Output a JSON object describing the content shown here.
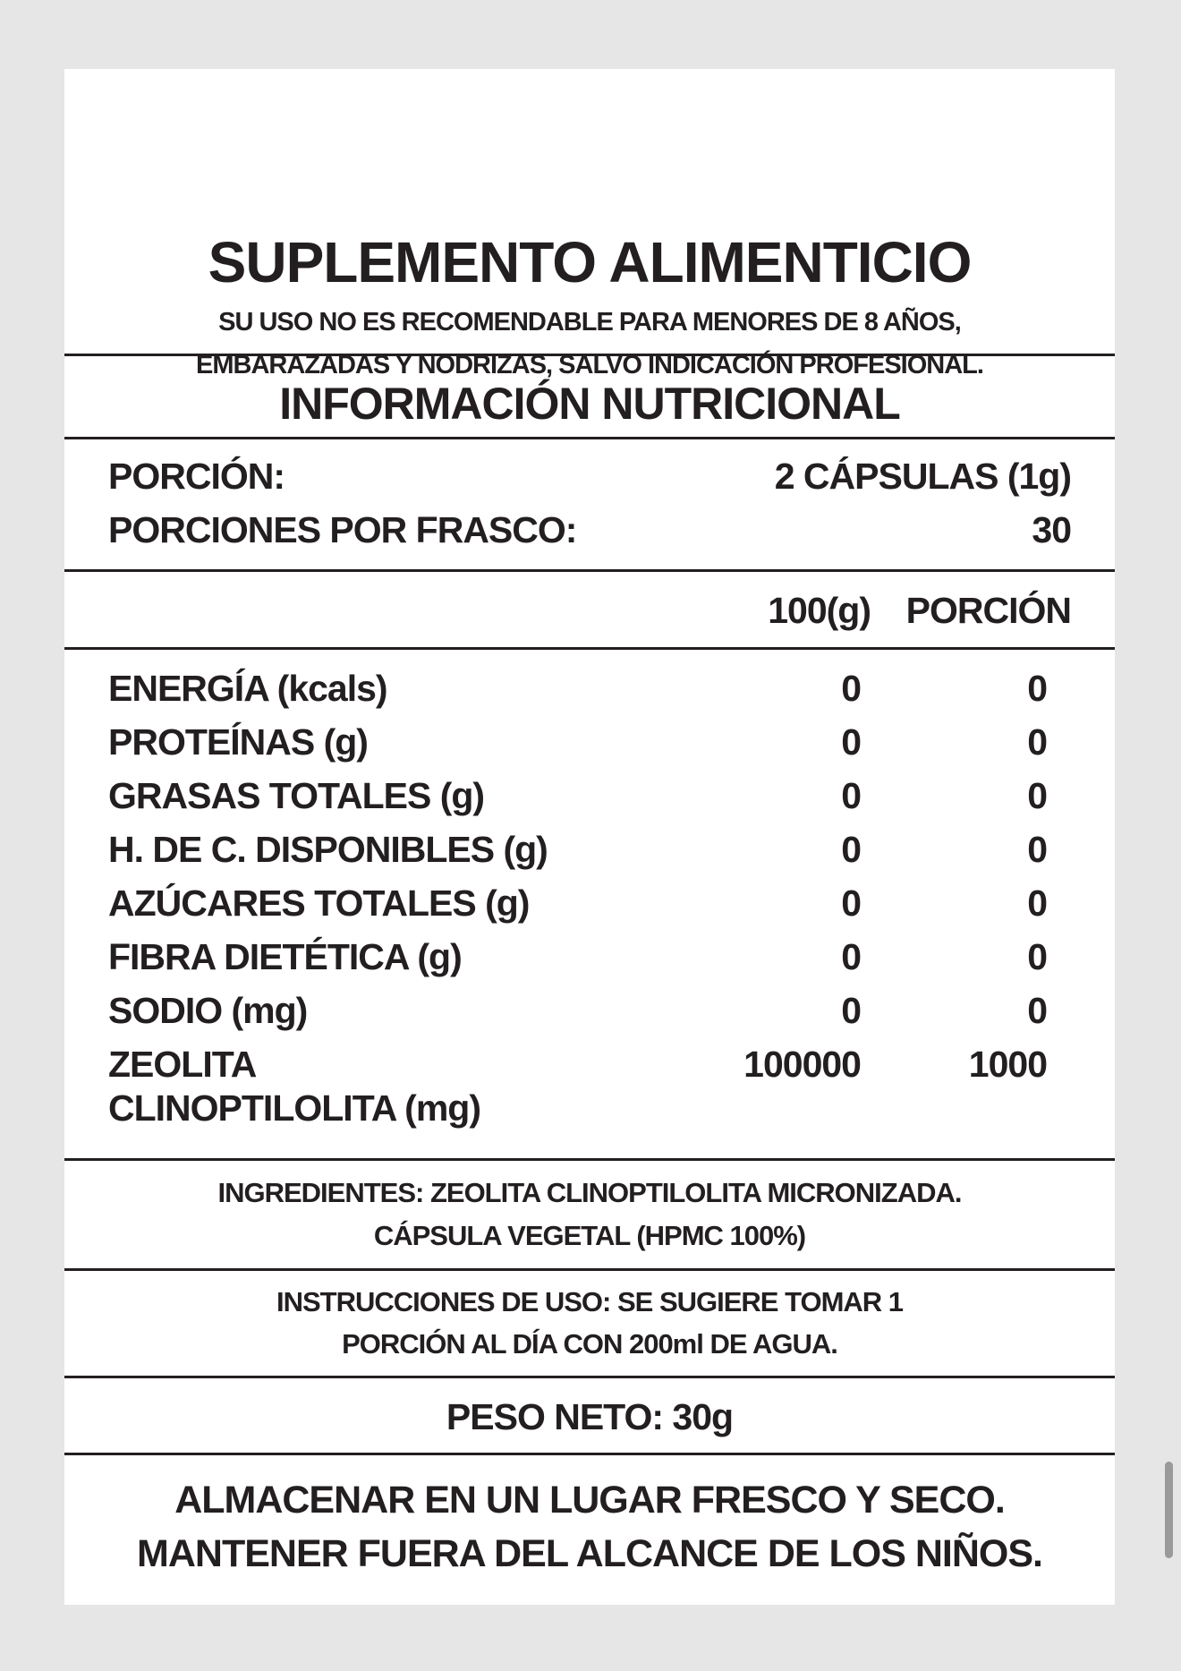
{
  "header": {
    "title": "SUPLEMENTO ALIMENTICIO",
    "warning_lines": [
      "SU USO NO ES RECOMENDABLE PARA MENORES DE 8 AÑOS,",
      "EMBARAZADAS Y NODRIZAS, SALVO INDICACIÓN PROFESIONAL."
    ]
  },
  "nutrition": {
    "title": "INFORMACIÓN NUTRICIONAL",
    "serving_label": "PORCIÓN:",
    "serving_value": "2 CÁPSULAS (1g)",
    "servings_label": "PORCIONES POR FRASCO:",
    "servings_value": "30",
    "columns": [
      "100(g)",
      "PORCIÓN"
    ],
    "rows": [
      {
        "label": "ENERGÍA (kcals)",
        "per100": "0",
        "portion": "0"
      },
      {
        "label": "PROTEÍNAS (g)",
        "per100": "0",
        "portion": "0"
      },
      {
        "label": "GRASAS TOTALES (g)",
        "per100": "0",
        "portion": "0"
      },
      {
        "label": "H. DE C. DISPONIBLES (g)",
        "per100": "0",
        "portion": "0"
      },
      {
        "label": "AZÚCARES TOTALES (g)",
        "per100": "0",
        "portion": "0"
      },
      {
        "label": "FIBRA DIETÉTICA (g)",
        "per100": "0",
        "portion": "0"
      },
      {
        "label": "SODIO (mg)",
        "per100": "0",
        "portion": "0"
      },
      {
        "label": "ZEOLITA",
        "label2": "CLINOPTILOLITA (mg)",
        "per100": "100000",
        "portion": "1000"
      }
    ]
  },
  "ingredients": [
    "INGREDIENTES: ZEOLITA CLINOPTILOLITA MICRONIZADA.",
    "CÁPSULA VEGETAL (HPMC 100%)"
  ],
  "instructions": [
    "INSTRUCCIONES DE USO: SE SUGIERE TOMAR 1",
    "PORCIÓN AL DÍA CON 200ml DE AGUA."
  ],
  "net_weight": "PESO NETO: 30g",
  "storage": [
    "ALMACENAR EN UN LUGAR FRESCO Y SECO.",
    "MANTENER FUERA DEL ALCANCE DE LOS NIÑOS."
  ]
}
